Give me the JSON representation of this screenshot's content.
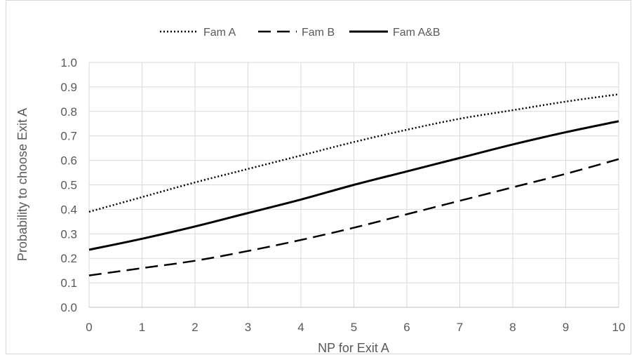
{
  "chart_data": {
    "type": "line",
    "xlabel": "NP for Exit A",
    "ylabel": "Probability to choose Exit A",
    "xlim": [
      0,
      10
    ],
    "ylim": [
      0,
      1
    ],
    "x_ticks": [
      "0",
      "1",
      "2",
      "3",
      "4",
      "5",
      "6",
      "7",
      "8",
      "9",
      "10"
    ],
    "y_ticks": [
      "0.0",
      "0.1",
      "0.2",
      "0.3",
      "0.4",
      "0.5",
      "0.6",
      "0.7",
      "0.8",
      "0.9",
      "1.0"
    ],
    "grid": true,
    "legend_position": "top",
    "series": [
      {
        "name": "Fam A",
        "style": "dotted",
        "color": "#000000",
        "x": [
          0,
          1,
          2,
          3,
          4,
          5,
          6,
          7,
          8,
          9,
          10
        ],
        "y": [
          0.39,
          0.45,
          0.51,
          0.565,
          0.62,
          0.675,
          0.725,
          0.77,
          0.805,
          0.84,
          0.87
        ]
      },
      {
        "name": "Fam B",
        "style": "dashed",
        "color": "#000000",
        "x": [
          0,
          1,
          2,
          3,
          4,
          5,
          6,
          7,
          8,
          9,
          10
        ],
        "y": [
          0.13,
          0.16,
          0.19,
          0.23,
          0.275,
          0.325,
          0.38,
          0.435,
          0.49,
          0.545,
          0.605
        ]
      },
      {
        "name": "Fam A&B",
        "style": "solid",
        "color": "#000000",
        "x": [
          0,
          1,
          2,
          3,
          4,
          5,
          6,
          7,
          8,
          9,
          10
        ],
        "y": [
          0.235,
          0.28,
          0.33,
          0.385,
          0.44,
          0.5,
          0.555,
          0.61,
          0.665,
          0.715,
          0.76
        ]
      }
    ]
  }
}
